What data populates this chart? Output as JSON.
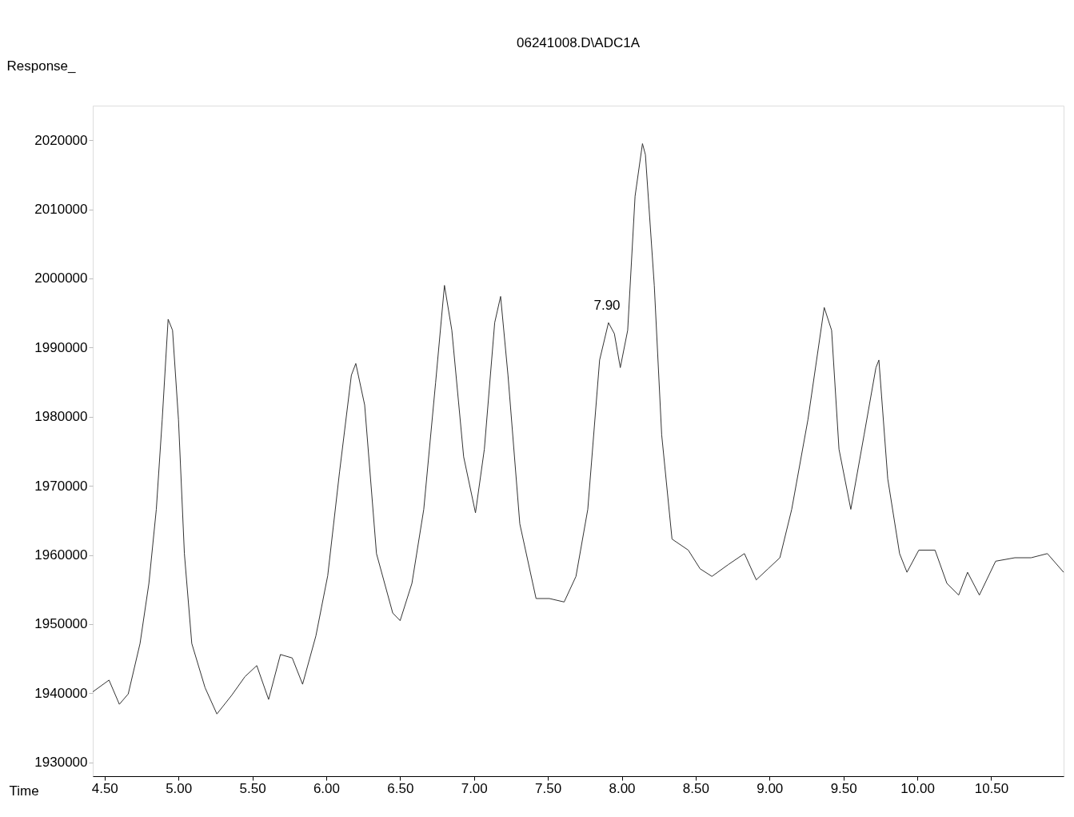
{
  "chart_data": {
    "type": "line",
    "title": "06241008.D\\ADC1A",
    "xlabel": "Time",
    "ylabel": "Response_",
    "xlim": [
      4.42,
      10.99
    ],
    "ylim": [
      1928000,
      2025000
    ],
    "xticks": [
      {
        "value": 4.5,
        "label": "4.50"
      },
      {
        "value": 5.0,
        "label": "5.00"
      },
      {
        "value": 5.5,
        "label": "5.50"
      },
      {
        "value": 6.0,
        "label": "6.00"
      },
      {
        "value": 6.5,
        "label": "6.50"
      },
      {
        "value": 7.0,
        "label": "7.00"
      },
      {
        "value": 7.5,
        "label": "7.50"
      },
      {
        "value": 8.0,
        "label": "8.00"
      },
      {
        "value": 8.5,
        "label": "8.50"
      },
      {
        "value": 9.0,
        "label": "9.00"
      },
      {
        "value": 9.5,
        "label": "9.50"
      },
      {
        "value": 10.0,
        "label": "10.00"
      },
      {
        "value": 10.5,
        "label": "10.50"
      }
    ],
    "yticks": [
      1930000,
      1940000,
      1950000,
      1960000,
      1970000,
      1980000,
      1990000,
      2000000,
      2010000,
      2020000
    ],
    "annotations": [
      {
        "text": "7.90",
        "x": 7.9,
        "y": 1994000
      }
    ],
    "series": [
      {
        "color": "#333333",
        "x": [
          4.42,
          4.53,
          4.6,
          4.66,
          4.74,
          4.8,
          4.85,
          4.89,
          4.93,
          4.96,
          5.0,
          5.04,
          5.09,
          5.18,
          5.26,
          5.36,
          5.45,
          5.53,
          5.61,
          5.69,
          5.77,
          5.84,
          5.93,
          6.01,
          6.09,
          6.17,
          6.2,
          6.26,
          6.34,
          6.45,
          6.5,
          6.58,
          6.66,
          6.74,
          6.8,
          6.85,
          6.93,
          7.01,
          7.07,
          7.14,
          7.18,
          7.23,
          7.31,
          7.42,
          7.51,
          7.61,
          7.69,
          7.77,
          7.85,
          7.91,
          7.95,
          7.99,
          8.04,
          8.09,
          8.14,
          8.16,
          8.22,
          8.27,
          8.34,
          8.45,
          8.53,
          8.61,
          8.72,
          8.83,
          8.91,
          8.99,
          9.07,
          9.15,
          9.26,
          9.37,
          9.42,
          9.47,
          9.55,
          9.64,
          9.72,
          9.74,
          9.8,
          9.88,
          9.93,
          10.01,
          10.12,
          10.2,
          10.28,
          10.34,
          10.42,
          10.53,
          10.66,
          10.77,
          10.88,
          10.99
        ],
        "values": [
          1940200,
          1941900,
          1938400,
          1939900,
          1947200,
          1955900,
          1966600,
          1979600,
          1994100,
          1992500,
          1979600,
          1960200,
          1947200,
          1940800,
          1937000,
          1939700,
          1942400,
          1944000,
          1939100,
          1945600,
          1945100,
          1941300,
          1948300,
          1957000,
          1972000,
          1986000,
          1987700,
          1981700,
          1960200,
          1951600,
          1950500,
          1955900,
          1966600,
          1984900,
          1999000,
          1992500,
          1974200,
          1966100,
          1975300,
          1993600,
          1997400,
          1986000,
          1964500,
          1953700,
          1953700,
          1953200,
          1956900,
          1966600,
          1988200,
          1993600,
          1992000,
          1987100,
          1992500,
          2011900,
          2019500,
          2017900,
          1999000,
          1977400,
          1962300,
          1960700,
          1958000,
          1956900,
          1958600,
          1960200,
          1956400,
          1958000,
          1959600,
          1966600,
          1979600,
          1995800,
          1992500,
          1975300,
          1966600,
          1977400,
          1987100,
          1988200,
          1971000,
          1960200,
          1957500,
          1960700,
          1960700,
          1955900,
          1954200,
          1957500,
          1954200,
          1959100,
          1959600,
          1959600,
          1960200,
          1957500
        ]
      }
    ]
  }
}
